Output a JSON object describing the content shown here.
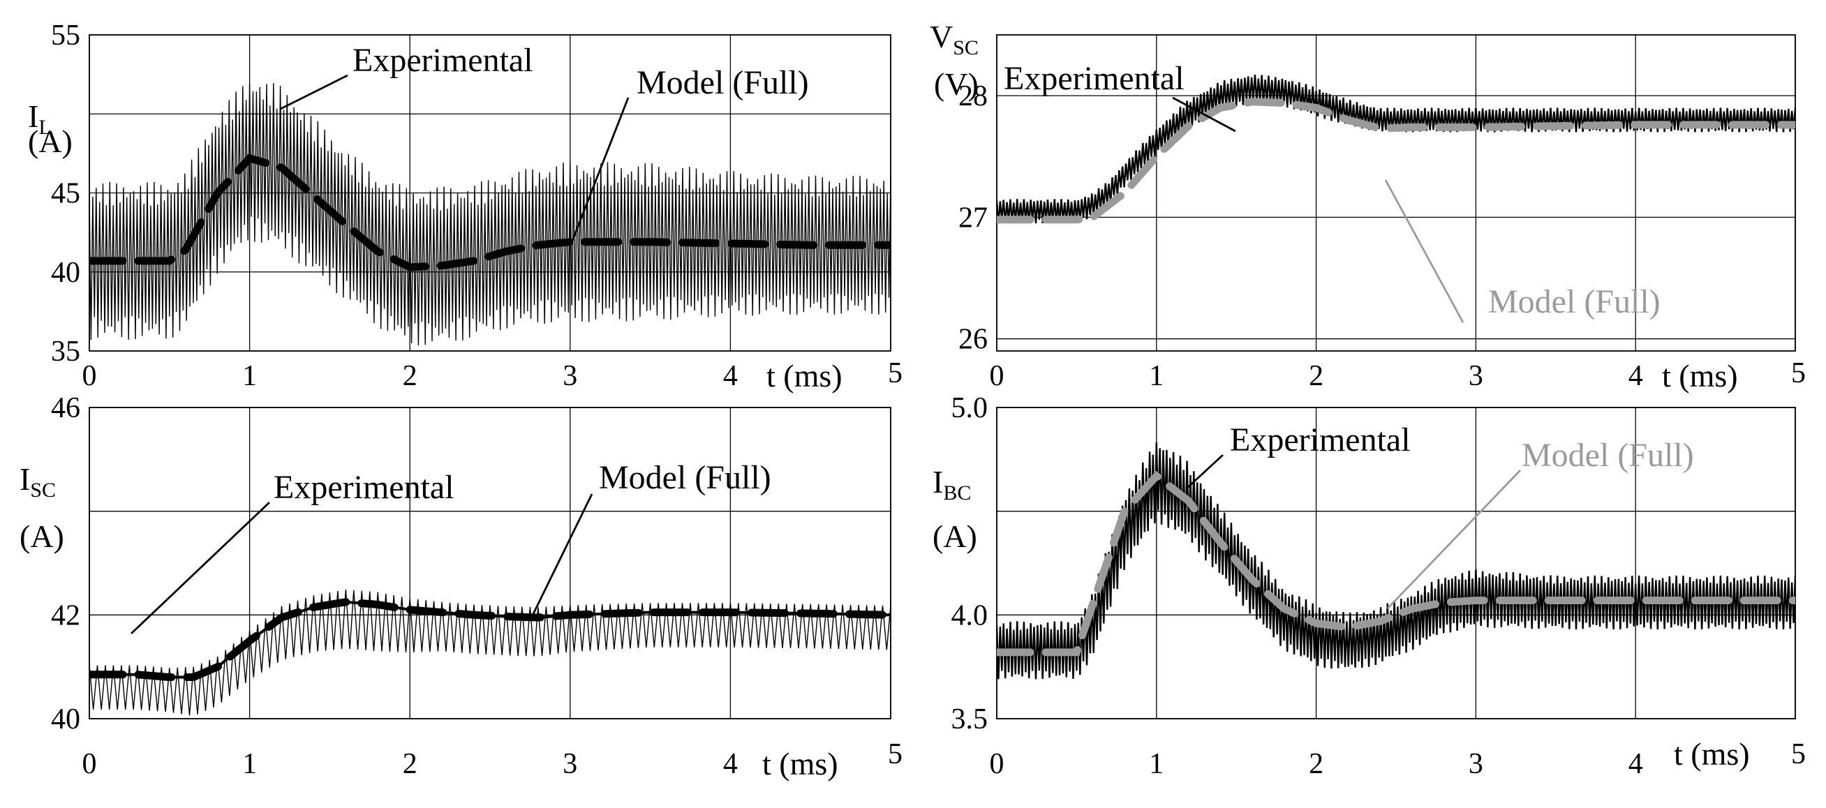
{
  "chart_data": [
    {
      "id": "IL",
      "type": "line",
      "ylabel": "I",
      "ylabel_sub": "L",
      "yunit": "(A)",
      "xlabel": "t (ms)",
      "xlim": [
        0,
        5
      ],
      "ylim": [
        35,
        55
      ],
      "x_ticks": [
        "0",
        "1",
        "2",
        "3",
        "4",
        "5"
      ],
      "y_ticks": [
        {
          "value": 35,
          "label": "35"
        },
        {
          "value": 40,
          "label": "40"
        },
        {
          "value": 45,
          "label": "45"
        },
        {
          "value": 55,
          "label": "55"
        }
      ],
      "grid_y": [
        35,
        40,
        45,
        50,
        55
      ],
      "grid": true,
      "series": [
        {
          "name": "Experimental",
          "style": "ripple",
          "color": "#000000",
          "x": [
            0,
            0.3,
            0.5,
            0.6,
            0.8,
            1.0,
            1.2,
            1.4,
            1.6,
            1.8,
            2.0,
            2.2,
            2.4,
            2.6,
            2.8,
            3.0,
            3.5,
            4.0,
            4.5,
            5.0
          ],
          "center": [
            40.7,
            40.7,
            40.7,
            41.4,
            45.0,
            47.2,
            46.6,
            44.8,
            43.0,
            41.3,
            40.3,
            40.4,
            40.7,
            41.3,
            41.7,
            41.9,
            41.9,
            41.8,
            41.7,
            41.7
          ],
          "amplitude": [
            5.0,
            5.0,
            5.0,
            5.0,
            5.1,
            5.2,
            5.2,
            5.0,
            4.8,
            4.8,
            5.0,
            5.0,
            4.9,
            4.9,
            5.0,
            5.1,
            5.0,
            4.6,
            4.4,
            4.4
          ]
        },
        {
          "name": "Model (Full)",
          "style": "dashed",
          "color": "#000000",
          "x": [
            0,
            0.3,
            0.5,
            0.6,
            0.8,
            1.0,
            1.2,
            1.4,
            1.6,
            1.8,
            2.0,
            2.2,
            2.4,
            2.6,
            2.8,
            3.0,
            3.5,
            4.0,
            4.5,
            5.0
          ],
          "y": [
            40.7,
            40.7,
            40.7,
            41.4,
            45.0,
            47.2,
            46.6,
            44.8,
            43.0,
            41.3,
            40.3,
            40.4,
            40.7,
            41.3,
            41.7,
            41.9,
            41.9,
            41.8,
            41.7,
            41.7
          ]
        }
      ],
      "annotations": [
        {
          "text": "Experimental",
          "color": "#000000"
        },
        {
          "text": "Model (Full)",
          "color": "#000000"
        }
      ]
    },
    {
      "id": "VSC",
      "type": "line",
      "ylabel": "V",
      "ylabel_sub": "SC",
      "yunit": "(V)",
      "xlabel": "t (ms)",
      "xlim": [
        0,
        5
      ],
      "ylim": [
        25.9,
        28.5
      ],
      "x_ticks": [
        "0",
        "1",
        "2",
        "3",
        "4",
        "5"
      ],
      "y_ticks": [
        {
          "value": 26,
          "label": "26"
        },
        {
          "value": 27,
          "label": "27"
        },
        {
          "value": 28,
          "label": "28"
        }
      ],
      "grid_y": [
        26,
        27,
        28
      ],
      "grid": true,
      "series": [
        {
          "name": "Experimental",
          "style": "ripple",
          "color": "#000000",
          "x": [
            0,
            0.3,
            0.5,
            0.6,
            0.7,
            0.8,
            1.0,
            1.2,
            1.4,
            1.6,
            1.8,
            2.0,
            2.2,
            2.4,
            2.6,
            2.8,
            3.0,
            3.5,
            4.0,
            4.5,
            5.0
          ],
          "center": [
            27.05,
            27.05,
            27.05,
            27.1,
            27.2,
            27.35,
            27.62,
            27.85,
            28.0,
            28.06,
            28.03,
            27.95,
            27.86,
            27.8,
            27.8,
            27.8,
            27.8,
            27.8,
            27.8,
            27.8,
            27.8
          ],
          "amplitude": [
            0.1,
            0.1,
            0.1,
            0.1,
            0.1,
            0.1,
            0.11,
            0.12,
            0.12,
            0.12,
            0.12,
            0.12,
            0.11,
            0.1,
            0.1,
            0.1,
            0.1,
            0.1,
            0.1,
            0.1,
            0.1
          ]
        },
        {
          "name": "Model (Full)",
          "style": "dashed",
          "color": "#9a9a9a",
          "x": [
            0,
            0.5,
            0.6,
            0.8,
            1.0,
            1.2,
            1.4,
            1.6,
            1.8,
            2.0,
            2.2,
            2.4,
            2.6,
            3.0,
            3.5,
            4.0,
            4.5,
            5.0
          ],
          "y": [
            26.98,
            26.98,
            27.0,
            27.2,
            27.5,
            27.75,
            27.9,
            27.95,
            27.94,
            27.9,
            27.8,
            27.73,
            27.74,
            27.74,
            27.75,
            27.76,
            27.76,
            27.76
          ]
        }
      ],
      "annotations": [
        {
          "text": "Experimental",
          "color": "#000000"
        },
        {
          "text": "Model (Full)",
          "color": "#9a9a9a"
        }
      ]
    },
    {
      "id": "ISC",
      "type": "line",
      "ylabel": "I",
      "ylabel_sub": "SC",
      "yunit": "(A)",
      "xlabel": "t (ms)",
      "xlim": [
        0,
        5
      ],
      "ylim": [
        40,
        46
      ],
      "x_ticks": [
        "0",
        "1",
        "2",
        "3",
        "4",
        "5"
      ],
      "y_ticks": [
        {
          "value": 40,
          "label": "40"
        },
        {
          "value": 42,
          "label": "42"
        },
        {
          "value": 46,
          "label": "46"
        }
      ],
      "grid_y": [
        40,
        42,
        44,
        46
      ],
      "grid": true,
      "series": [
        {
          "name": "Experimental",
          "style": "spikes",
          "color": "#000000",
          "x": [
            0,
            0.3,
            0.5,
            0.65,
            0.8,
            1.0,
            1.2,
            1.4,
            1.6,
            1.8,
            2.0,
            2.2,
            2.4,
            2.6,
            2.8,
            3.0,
            3.5,
            4.0,
            4.5,
            5.0
          ],
          "center": [
            40.85,
            40.85,
            40.8,
            40.8,
            41.0,
            41.5,
            41.95,
            42.15,
            42.25,
            42.2,
            42.1,
            42.05,
            42.0,
            41.97,
            41.95,
            42.0,
            42.05,
            42.05,
            42.03,
            42.0
          ],
          "amplitude": [
            0.9,
            0.9,
            0.9,
            1.0,
            1.0,
            1.0,
            1.1,
            1.15,
            1.2,
            1.2,
            1.1,
            1.0,
            1.0,
            1.0,
            1.0,
            0.95,
            0.9,
            0.9,
            0.9,
            0.9
          ]
        },
        {
          "name": "Model (Full)",
          "style": "dashed",
          "color": "#000000",
          "x": [
            0,
            0.3,
            0.5,
            0.65,
            0.8,
            1.0,
            1.2,
            1.4,
            1.6,
            1.8,
            2.0,
            2.2,
            2.4,
            2.6,
            2.8,
            3.0,
            3.5,
            4.0,
            4.5,
            5.0
          ],
          "y": [
            40.85,
            40.85,
            40.8,
            40.8,
            41.0,
            41.5,
            41.95,
            42.15,
            42.25,
            42.2,
            42.1,
            42.05,
            42.0,
            41.97,
            41.95,
            42.0,
            42.05,
            42.05,
            42.03,
            42.0
          ]
        }
      ],
      "annotations": [
        {
          "text": "Experimental",
          "color": "#000000"
        },
        {
          "text": "Model (Full)",
          "color": "#000000"
        }
      ]
    },
    {
      "id": "IBC",
      "type": "line",
      "ylabel": "I",
      "ylabel_sub": "BC",
      "yunit": "(A)",
      "xlabel": "t (ms)",
      "xlim": [
        0,
        5
      ],
      "ylim": [
        3.5,
        5.0
      ],
      "x_ticks": [
        "0",
        "1",
        "2",
        "3",
        "4",
        "5"
      ],
      "y_ticks": [
        {
          "value": 3.5,
          "label": "3.5"
        },
        {
          "value": 4.0,
          "label": "4.0"
        },
        {
          "value": 5.0,
          "label": "5.0"
        }
      ],
      "grid_y": [
        3.5,
        4.0,
        4.5,
        5.0
      ],
      "grid": true,
      "series": [
        {
          "name": "Experimental",
          "style": "ripple",
          "color": "#000000",
          "x": [
            0,
            0.3,
            0.5,
            0.6,
            0.8,
            1.0,
            1.2,
            1.4,
            1.6,
            1.8,
            2.0,
            2.2,
            2.4,
            2.6,
            2.8,
            3.0,
            3.5,
            4.0,
            4.5,
            5.0
          ],
          "center": [
            3.83,
            3.83,
            3.83,
            3.95,
            4.4,
            4.65,
            4.55,
            4.35,
            4.15,
            3.98,
            3.9,
            3.87,
            3.9,
            3.97,
            4.05,
            4.08,
            4.06,
            4.06,
            4.06,
            4.06
          ],
          "amplitude": [
            0.14,
            0.14,
            0.14,
            0.16,
            0.18,
            0.2,
            0.19,
            0.17,
            0.16,
            0.15,
            0.15,
            0.14,
            0.14,
            0.14,
            0.14,
            0.14,
            0.13,
            0.13,
            0.13,
            0.13
          ]
        },
        {
          "name": "Model (Full)",
          "style": "dashed",
          "color": "#9a9a9a",
          "x": [
            0,
            0.3,
            0.5,
            0.6,
            0.8,
            1.0,
            1.2,
            1.4,
            1.6,
            1.8,
            2.0,
            2.2,
            2.4,
            2.6,
            2.8,
            3.0,
            3.5,
            4.0,
            4.5,
            5.0
          ],
          "y": [
            3.82,
            3.82,
            3.82,
            4.05,
            4.5,
            4.67,
            4.55,
            4.35,
            4.17,
            4.03,
            3.96,
            3.94,
            3.97,
            4.03,
            4.06,
            4.07,
            4.07,
            4.07,
            4.07,
            4.07
          ]
        }
      ],
      "annotations": [
        {
          "text": "Experimental",
          "color": "#000000"
        },
        {
          "text": "Model (Full)",
          "color": "#9a9a9a"
        }
      ]
    }
  ]
}
